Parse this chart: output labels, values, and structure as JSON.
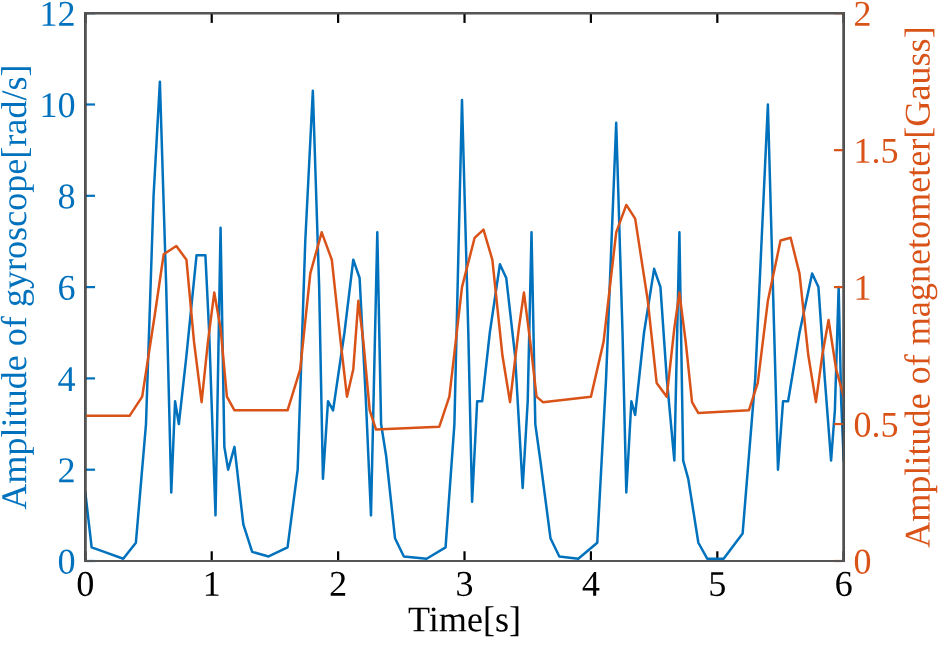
{
  "chart_data": {
    "type": "line",
    "xlabel": "Time[s]",
    "ylabel": "Amplitude of gyroscope[rad/s]",
    "y2label": "Amplitude of magnetometer[Gauss]",
    "xlim": [
      0,
      6
    ],
    "xticks": [
      0,
      1,
      2,
      3,
      4,
      5,
      6
    ],
    "ylim": [
      0,
      12
    ],
    "yticks": [
      0,
      2,
      4,
      6,
      8,
      10,
      12
    ],
    "y2lim": [
      0,
      2
    ],
    "y2ticks": [
      0,
      0.5,
      1,
      1.5,
      2
    ],
    "grid": false,
    "legend": false,
    "line_style": "solid",
    "marker": "none",
    "series": [
      {
        "color": "#0072bd",
        "x": [
          0,
          0.05,
          0.15,
          0.3,
          0.4,
          0.48,
          0.54,
          0.59,
          0.64,
          0.68,
          0.71,
          0.74,
          0.8,
          0.88,
          0.95,
          0.98,
          1.03,
          1.07,
          1.1,
          1.13,
          1.18,
          1.25,
          1.32,
          1.45,
          1.6,
          1.68,
          1.74,
          1.8,
          1.85,
          1.88,
          1.92,
          1.96,
          2.05,
          2.12,
          2.17,
          2.22,
          2.26,
          2.31,
          2.34,
          2.38,
          2.45,
          2.52,
          2.7,
          2.85,
          2.92,
          2.98,
          3.03,
          3.06,
          3.1,
          3.14,
          3.2,
          3.28,
          3.33,
          3.4,
          3.46,
          3.5,
          3.53,
          3.56,
          3.6,
          3.68,
          3.75,
          3.9,
          4.05,
          4.12,
          4.2,
          4.25,
          4.28,
          4.32,
          4.35,
          4.42,
          4.5,
          4.55,
          4.6,
          4.66,
          4.7,
          4.73,
          4.77,
          4.85,
          4.92,
          5.05,
          5.2,
          5.3,
          5.4,
          5.45,
          5.48,
          5.52,
          5.56,
          5.65,
          5.75,
          5.8,
          5.85,
          5.9,
          5.93,
          5.96,
          5.98,
          6.0
        ],
        "values": [
          1.5,
          0.3,
          0.2,
          0.05,
          0.4,
          3,
          8,
          10.5,
          6,
          1.5,
          3.5,
          3,
          4.5,
          6.7,
          6.7,
          5,
          1.0,
          7.3,
          2.5,
          2,
          2.5,
          0.8,
          0.2,
          0.1,
          0.3,
          2,
          7,
          10.3,
          6,
          1.8,
          3.5,
          3.3,
          5,
          6.6,
          6.2,
          3.5,
          1.0,
          7.2,
          3,
          2.3,
          0.5,
          0.1,
          0.05,
          0.3,
          3,
          10.1,
          5,
          1.3,
          3.5,
          3.5,
          5,
          6.5,
          6.2,
          4.5,
          1.6,
          3.5,
          7.2,
          3,
          2.2,
          0.5,
          0.1,
          0.05,
          0.4,
          4,
          9.6,
          5,
          1.5,
          3.5,
          3.2,
          5,
          6.4,
          6,
          4,
          2.2,
          7.2,
          2.2,
          1.8,
          0.4,
          0.05,
          0.05,
          0.6,
          4,
          10.0,
          5,
          2,
          3.5,
          3.5,
          5,
          6.3,
          6,
          4,
          2.2,
          3.3,
          6.0,
          3.5,
          2.2
        ]
      },
      {
        "color": "#d95319",
        "axis": "y2",
        "x": [
          0,
          0.35,
          0.45,
          0.55,
          0.62,
          0.72,
          0.8,
          0.86,
          0.92,
          0.97,
          1.02,
          1.07,
          1.12,
          1.18,
          1.6,
          1.7,
          1.78,
          1.87,
          1.95,
          2.02,
          2.07,
          2.12,
          2.16,
          2.2,
          2.25,
          2.3,
          2.8,
          2.88,
          2.98,
          3.08,
          3.15,
          3.22,
          3.3,
          3.36,
          3.43,
          3.47,
          3.52,
          3.57,
          3.62,
          4.0,
          4.1,
          4.2,
          4.28,
          4.35,
          4.45,
          4.52,
          4.6,
          4.66,
          4.7,
          4.75,
          4.8,
          4.85,
          5.25,
          5.32,
          5.4,
          5.5,
          5.58,
          5.65,
          5.72,
          5.78,
          5.83,
          5.88,
          5.94,
          6.0
        ],
        "values": [
          0.53,
          0.53,
          0.6,
          0.9,
          1.12,
          1.15,
          1.1,
          0.8,
          0.58,
          0.8,
          0.98,
          0.85,
          0.6,
          0.55,
          0.55,
          0.7,
          1.05,
          1.2,
          1.1,
          0.8,
          0.6,
          0.7,
          0.95,
          0.8,
          0.55,
          0.48,
          0.49,
          0.6,
          1.0,
          1.18,
          1.21,
          1.1,
          0.75,
          0.58,
          0.85,
          0.98,
          0.8,
          0.6,
          0.58,
          0.6,
          0.8,
          1.2,
          1.3,
          1.25,
          0.95,
          0.65,
          0.6,
          0.85,
          0.98,
          0.8,
          0.58,
          0.54,
          0.55,
          0.65,
          0.95,
          1.17,
          1.18,
          1.05,
          0.75,
          0.58,
          0.75,
          0.88,
          0.7,
          0.6
        ]
      }
    ]
  }
}
